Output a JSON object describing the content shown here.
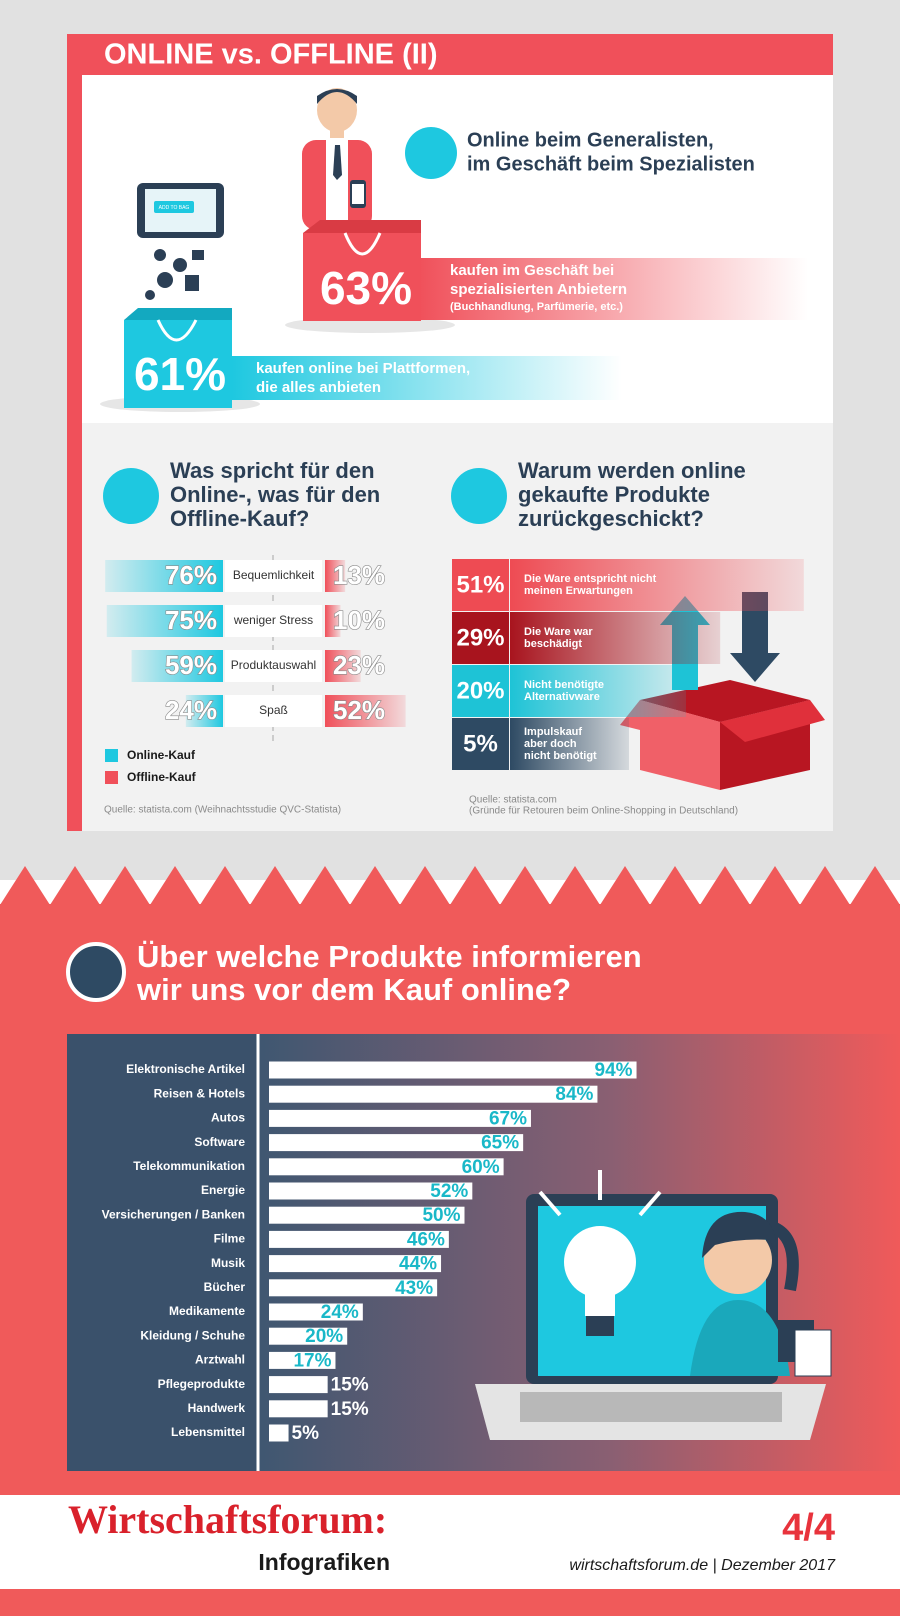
{
  "header": {
    "title": "ONLINE vs. OFFLINE (II)"
  },
  "generalist": {
    "heading": [
      "Online beim Generalisten,",
      "im Geschäft beim Spezialisten"
    ],
    "tablet_button": "ADD TO BAG",
    "offline": {
      "value": "63%",
      "text": [
        "kaufen im Geschäft bei",
        "spezialisierten Anbietern"
      ],
      "note": "(Buchhandlung, Parfümerie, etc.)"
    },
    "online": {
      "value": "61%",
      "text": [
        "kaufen online bei Plattformen,",
        "die alles anbieten"
      ]
    }
  },
  "chart_data": [
    {
      "type": "butterfly",
      "title": [
        "Was spricht für den",
        "Online-, was für den",
        "Offline-Kauf?"
      ],
      "categories": [
        "Bequemlichkeit",
        "weniger Stress",
        "Produktauswahl",
        "Spaß"
      ],
      "series": [
        {
          "name": "Online-Kauf",
          "color": "#1ec8e0",
          "values": [
            76,
            75,
            59,
            24
          ],
          "value_labels": [
            "76%",
            "75%",
            "59%",
            "24%"
          ]
        },
        {
          "name": "Offline-Kauf",
          "color": "#f0505a",
          "values": [
            13,
            10,
            23,
            52
          ],
          "value_labels": [
            "13%",
            "10%",
            "23%",
            "52%"
          ]
        }
      ],
      "source": "Quelle: statista.com (Weihnachtsstudie QVC-Statista)"
    },
    {
      "type": "tile",
      "title": [
        "Warum werden online",
        "gekaufte Produkte",
        "zurückgeschickt?"
      ],
      "categories": [
        [
          "Die Ware entspricht nicht",
          "meinen Erwartungen"
        ],
        [
          "Die Ware war",
          "beschädigt"
        ],
        [
          "Nicht benötigte",
          "Alternativware"
        ],
        [
          "Impulskauf",
          "aber doch",
          "nicht benötigt"
        ]
      ],
      "values": [
        51,
        29,
        20,
        5
      ],
      "value_labels": [
        "51%",
        "29%",
        "20%",
        "5%"
      ],
      "colors": [
        "#ee4b53",
        "#a8141e",
        "#1ec3d6",
        "#2e4a63"
      ],
      "source": [
        "Quelle: statista.com",
        "(Gründe für Retouren beim Online-Shopping in Deutschland)"
      ]
    },
    {
      "type": "bar",
      "orientation": "horizontal",
      "title": [
        "Über welche Produkte informieren",
        "wir uns vor dem Kauf online?"
      ],
      "categories": [
        "Elektronische Artikel",
        "Reisen & Hotels",
        "Autos",
        "Software",
        "Telekommunikation",
        "Energie",
        "Versicherungen / Banken",
        "Filme",
        "Musik",
        "Bücher",
        "Medikamente",
        "Kleidung / Schuhe",
        "Arztwahl",
        "Pflegeprodukte",
        "Handwerk",
        "Lebensmittel"
      ],
      "values": [
        94,
        84,
        67,
        65,
        60,
        52,
        50,
        46,
        44,
        43,
        24,
        20,
        17,
        15,
        15,
        5
      ],
      "value_labels": [
        "94%",
        "84%",
        "67%",
        "65%",
        "60%",
        "52%",
        "50%",
        "46%",
        "44%",
        "43%",
        "24%",
        "20%",
        "17%",
        "15%",
        "15%",
        "5%"
      ],
      "color": "#ffffff",
      "label_color": "#1ab8c8"
    }
  ],
  "footer": {
    "brand": "Wirtschaftsforum:",
    "subtitle": "Infografiken",
    "page": "4/4",
    "credit": "wirtschaftsforum.de | Dezember 2017"
  }
}
